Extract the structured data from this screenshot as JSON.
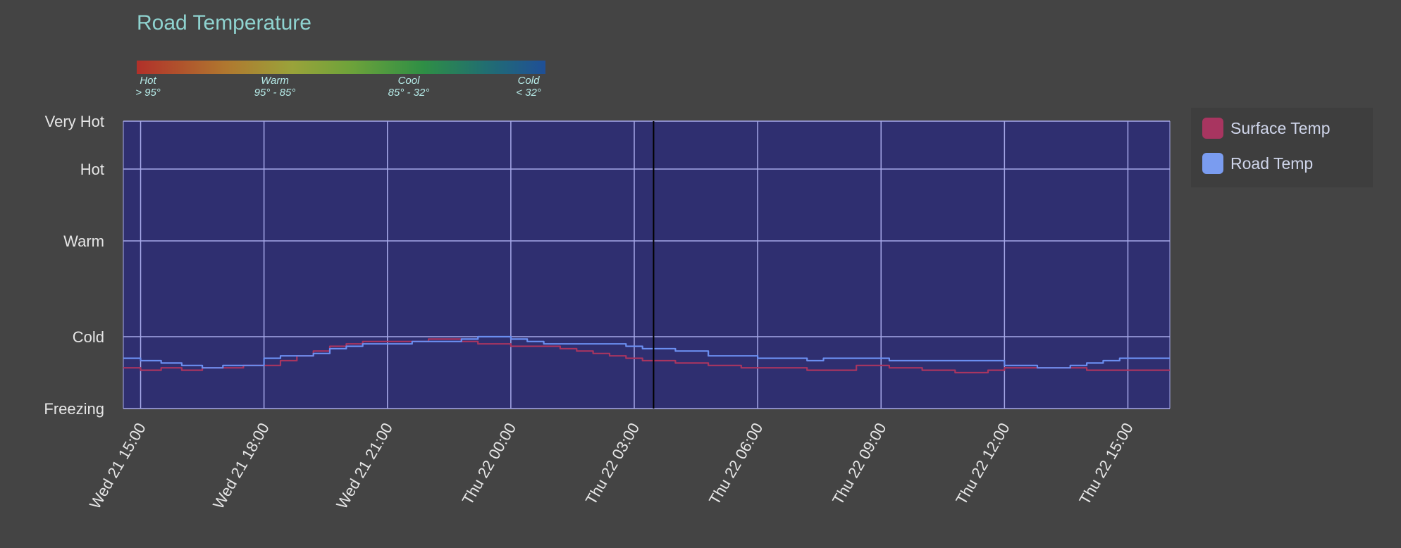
{
  "chart_data": {
    "type": "line",
    "title": "Road Temperature",
    "scale_legend": [
      {
        "label": "Hot",
        "range": "> 95°"
      },
      {
        "label": "Warm",
        "range": "95° - 85°"
      },
      {
        "label": "Cool",
        "range": "85° - 32°"
      },
      {
        "label": "Cold",
        "range": "< 32°"
      }
    ],
    "y_categories": [
      {
        "label": "Very Hot",
        "value": 120
      },
      {
        "label": "Hot",
        "value": 100
      },
      {
        "label": "Warm",
        "value": 70
      },
      {
        "label": "Cold",
        "value": 30
      },
      {
        "label": "Freezing",
        "value": 0
      }
    ],
    "ylim": [
      0,
      120
    ],
    "x_ticks": [
      "Wed 21 15:00",
      "Wed 21 18:00",
      "Wed 21 21:00",
      "Thu 22 00:00",
      "Thu 22 03:00",
      "Thu 22 06:00",
      "Thu 22 09:00",
      "Thu 22 12:00",
      "Thu 22 15:00"
    ],
    "x_unit": "hours from Wed 21 15:00",
    "xlim": [
      -0.42,
      25.02
    ],
    "marker_x": 12.47,
    "grid": true,
    "legend_position": "right",
    "series": [
      {
        "name": "Surface Temp",
        "color": "#a83560",
        "x": [
          -0.42,
          0,
          0.5,
          1,
          1.5,
          2,
          2.5,
          3,
          3.4,
          3.8,
          4.2,
          4.6,
          5,
          5.4,
          5.8,
          6.2,
          6.6,
          7,
          7.4,
          7.8,
          8.2,
          8.6,
          9,
          9.4,
          9.8,
          10.2,
          10.6,
          11,
          11.4,
          11.8,
          12.2,
          12.6,
          13,
          13.4,
          13.8,
          14.2,
          14.6,
          15,
          15.4,
          15.8,
          16.2,
          16.6,
          17,
          17.4,
          17.8,
          18.2,
          18.6,
          19,
          19.4,
          19.8,
          20.2,
          20.6,
          21,
          21.4,
          21.8,
          22.2,
          22.6,
          23,
          23.4,
          23.8,
          24.2
        ],
        "y": [
          17,
          16,
          17,
          16,
          17,
          17,
          18,
          18,
          20,
          22,
          24,
          26,
          27,
          28,
          28,
          28,
          28,
          29,
          29,
          28,
          27,
          27,
          26,
          26,
          26,
          25,
          24,
          23,
          22,
          21,
          20,
          20,
          19,
          19,
          18,
          18,
          17,
          17,
          17,
          17,
          16,
          16,
          16,
          18,
          18,
          17,
          17,
          16,
          16,
          15,
          15,
          16,
          17,
          17,
          17,
          17,
          17,
          16,
          16,
          16,
          16
        ]
      },
      {
        "name": "Road Temp",
        "color": "#6b8ef0",
        "x": [
          -0.42,
          0,
          0.5,
          1,
          1.5,
          2,
          2.5,
          3,
          3.4,
          3.8,
          4.2,
          4.6,
          5,
          5.4,
          5.8,
          6.2,
          6.6,
          7,
          7.4,
          7.8,
          8.2,
          8.6,
          9,
          9.4,
          9.8,
          10.2,
          10.6,
          11,
          11.4,
          11.8,
          12.2,
          12.6,
          13,
          13.4,
          13.8,
          14.2,
          14.6,
          15,
          15.4,
          15.8,
          16.2,
          16.6,
          17,
          17.4,
          17.8,
          18.2,
          18.6,
          19,
          19.4,
          19.8,
          20.2,
          20.6,
          21,
          21.4,
          21.8,
          22.2,
          22.6,
          23,
          23.4,
          23.8,
          24.2
        ],
        "y": [
          21,
          20,
          19,
          18,
          17,
          18,
          18,
          21,
          22,
          22,
          23,
          25,
          26,
          27,
          27,
          27,
          28,
          28,
          28,
          29,
          30,
          30,
          29,
          28,
          27,
          27,
          27,
          27,
          27,
          26,
          25,
          25,
          24,
          24,
          22,
          22,
          22,
          21,
          21,
          21,
          20,
          21,
          21,
          21,
          21,
          20,
          20,
          20,
          20,
          20,
          20,
          20,
          18,
          18,
          17,
          17,
          18,
          19,
          20,
          21,
          21
        ]
      }
    ]
  }
}
